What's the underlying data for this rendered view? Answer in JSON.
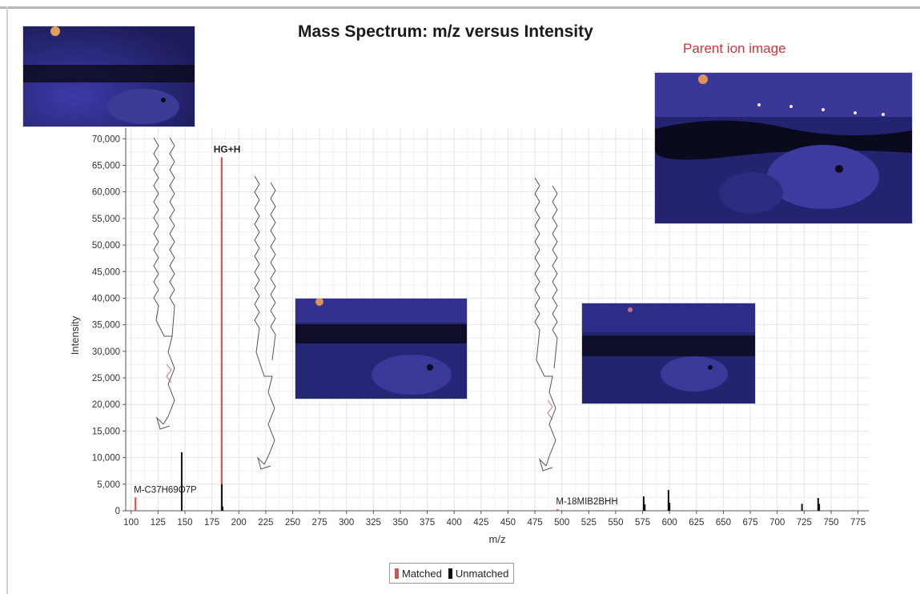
{
  "chart_data": {
    "type": "bar",
    "title": "Mass Spectrum: m/z versus Intensity",
    "xlabel": "m/z",
    "ylabel": "Intensity",
    "xlim": [
      95,
      785
    ],
    "ylim": [
      0,
      72000
    ],
    "x_ticks": [
      100,
      125,
      150,
      175,
      200,
      225,
      250,
      275,
      300,
      325,
      350,
      375,
      400,
      425,
      450,
      475,
      500,
      525,
      550,
      575,
      600,
      625,
      650,
      675,
      700,
      725,
      750,
      775
    ],
    "y_ticks": [
      0,
      5000,
      10000,
      15000,
      20000,
      25000,
      30000,
      35000,
      40000,
      45000,
      50000,
      55000,
      60000,
      65000,
      70000
    ],
    "grid": true,
    "legend_position": "bottom-center",
    "series": [
      {
        "name": "Matched",
        "color": "#d9534f",
        "points": [
          {
            "x": 104.1,
            "y": 2500
          },
          {
            "x": 184.1,
            "y": 66500
          },
          {
            "x": 496.0,
            "y": 300
          }
        ]
      },
      {
        "name": "Unmatched",
        "color": "#111111",
        "points": [
          {
            "x": 147.0,
            "y": 11000
          },
          {
            "x": 184.3,
            "y": 5000
          },
          {
            "x": 185.0,
            "y": 800
          },
          {
            "x": 576.0,
            "y": 2700
          },
          {
            "x": 577.0,
            "y": 1200
          },
          {
            "x": 599.0,
            "y": 3900
          },
          {
            "x": 600.0,
            "y": 1500
          },
          {
            "x": 723.0,
            "y": 1300
          },
          {
            "x": 738.0,
            "y": 2400
          },
          {
            "x": 739.0,
            "y": 1300
          }
        ]
      }
    ],
    "annotations": [
      {
        "text": "HG+H",
        "x": 184,
        "y": 66500,
        "style": "bold"
      },
      {
        "text": "M-C37H69O7P",
        "x": 104,
        "y": 2500
      },
      {
        "text": "M-18MIB2BHH",
        "x": 496,
        "y": 300
      }
    ]
  },
  "labels": {
    "parent_ion": "Parent ion image"
  },
  "legend": {
    "matched": "Matched",
    "unmatched": "Unmatched"
  },
  "colors": {
    "matched": "#d9534f",
    "unmatched": "#111111",
    "grid": "#e4e4e4",
    "ion_image_background": "#2b2b82"
  }
}
